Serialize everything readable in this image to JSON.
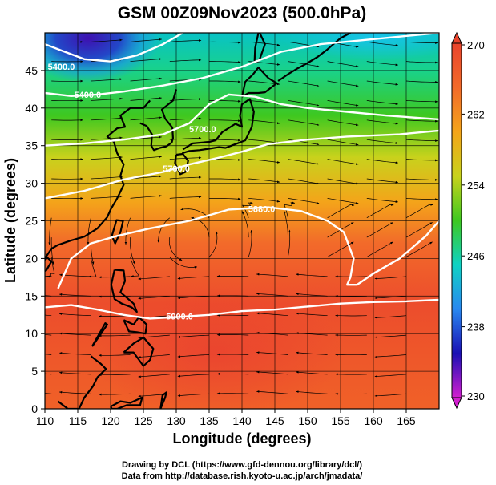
{
  "title": "GSM 00Z09Nov2023 (500.0hPa)",
  "xlabel": "Longitude (degrees)",
  "ylabel": "Latitude  (degrees)",
  "footer": [
    "Drawing by DCL (https://www.gfd-dennou.org/library/dcl/)",
    "Data from http://database.rish.kyoto-u.ac.jp/arch/jmadata/"
  ],
  "colors": {
    "colorbar": [
      "#d21ecf",
      "#1a10b4",
      "#2888f0",
      "#0fd2c4",
      "#3ec820",
      "#c8d21c",
      "#f4a41a",
      "#f26a2a",
      "#e9442c"
    ],
    "contour": "#ffffff",
    "coast": "#000000",
    "streamline": "#000000"
  },
  "chart_data": {
    "type": "heatmap",
    "field": "temperature (K) at 500 hPa with geopotential height contours and wind streamlines",
    "xlim": [
      110,
      170
    ],
    "ylim": [
      0,
      50
    ],
    "xticks": [
      "110",
      "115",
      "120",
      "125",
      "130",
      "135",
      "140",
      "145",
      "150",
      "155",
      "160",
      "165"
    ],
    "yticks": [
      "0",
      "5",
      "10",
      "15",
      "20",
      "25",
      "30",
      "35",
      "40",
      "45"
    ],
    "colorbar": {
      "min": 230,
      "max": 270,
      "ticks": [
        "230",
        "238",
        "246",
        "254",
        "262",
        "270"
      ]
    },
    "contours": [
      {
        "label": "5400.0",
        "lon": [
          110,
          113,
          116,
          120,
          124,
          128,
          131
        ],
        "lat": [
          48.5,
          47.5,
          46.5,
          46.2,
          47,
          48.5,
          50
        ]
      },
      {
        "label": "5400.0",
        "lon": [
          110,
          114,
          118,
          122,
          128,
          134,
          140,
          146,
          152,
          158,
          164,
          170
        ],
        "lat": [
          42,
          41.6,
          41.8,
          42.2,
          43,
          44,
          45.5,
          47.5,
          48.5,
          49,
          49.5,
          50
        ]
      },
      {
        "label": "5700.0",
        "lon": [
          110,
          116,
          122,
          128,
          132,
          135,
          138,
          142,
          146,
          150,
          156,
          162,
          170
        ],
        "lat": [
          35,
          35.3,
          35.8,
          36.5,
          38,
          40.5,
          41.8,
          41.5,
          40.5,
          40,
          39.5,
          39,
          38.5
        ]
      },
      {
        "label": "5700.0",
        "lon": [
          110,
          116,
          122,
          128,
          132,
          136,
          140,
          144,
          150,
          156,
          164,
          170
        ],
        "lat": [
          28,
          29,
          30.5,
          31.5,
          32.5,
          33.3,
          34.2,
          35.2,
          35.8,
          36.2,
          36.5,
          37
        ]
      },
      {
        "label": "5880.0",
        "lon": [
          112,
          114,
          117,
          121,
          126,
          132,
          138,
          144,
          149,
          153,
          155.5,
          157,
          156.5,
          156,
          157.5,
          160,
          164,
          168,
          170
        ],
        "lat": [
          16,
          20,
          22,
          23,
          24,
          25,
          26.5,
          26.8,
          26.3,
          25,
          23.5,
          20,
          17.5,
          16.5,
          16.5,
          18,
          20,
          23,
          25
        ]
      },
      {
        "label": "5900.0",
        "lon": [
          110,
          114,
          118,
          122,
          126,
          130,
          135,
          140,
          145,
          150,
          155,
          160,
          165,
          170
        ],
        "lat": [
          13.5,
          13.8,
          13.2,
          12.5,
          12,
          12.2,
          12.5,
          13,
          13.2,
          13.6,
          14,
          14.2,
          14.3,
          14.5
        ]
      }
    ],
    "contour_labels": [
      {
        "text": "5400.0",
        "lon": 112.5,
        "lat": 45.5
      },
      {
        "text": "5400.0",
        "lon": 116.5,
        "lat": 41.8
      },
      {
        "text": "5700.0",
        "lon": 134,
        "lat": 37.2
      },
      {
        "text": "5700.0",
        "lon": 130,
        "lat": 32.0
      },
      {
        "text": "5880.0",
        "lon": 143,
        "lat": 26.6
      },
      {
        "text": "5900.0",
        "lon": 130.5,
        "lat": 12.3
      }
    ],
    "coastlines": [
      {
        "name": "China",
        "lon": [
          110,
          111,
          112,
          114,
          116,
          118,
          119.5,
          120,
          121,
          122,
          121.5,
          122,
          121,
          120.5,
          119.5,
          121,
          122.2,
          121.5,
          123,
          125,
          126
        ],
        "lat": [
          20,
          21.3,
          21.8,
          22.4,
          22.9,
          24,
          25.5,
          26.5,
          28,
          29.8,
          31,
          32.5,
          34,
          35.5,
          36.2,
          37.3,
          37.5,
          39,
          40,
          40,
          41
        ]
      },
      {
        "name": "Korea",
        "lon": [
          124.5,
          125.5,
          126.3,
          126.2,
          126.6,
          127.5,
          128.5,
          129.3,
          129.5,
          129.4,
          128.3,
          127.8,
          129.5,
          130
        ],
        "lat": [
          38,
          37.6,
          36.5,
          35,
          34.4,
          34.7,
          34.9,
          35.4,
          36,
          37.4,
          38.6,
          39.8,
          41,
          42.5
        ]
      },
      {
        "name": "Honshu",
        "lon": [
          130.9,
          132,
          133.5,
          135,
          136.5,
          137.5,
          139,
          140.5,
          141.5,
          141.8,
          141.2,
          140,
          139.7,
          140,
          139,
          137,
          136,
          135,
          132.5,
          131
        ],
        "lat": [
          34,
          34.3,
          34.4,
          34.6,
          34.8,
          34.7,
          35.2,
          35.7,
          37.5,
          39.5,
          41.2,
          40.5,
          39,
          37.5,
          37.9,
          36.8,
          35.7,
          35.5,
          35.3,
          34.5
        ]
      },
      {
        "name": "Kyushu",
        "lon": [
          130,
          131,
          131.8,
          131.4,
          130.6,
          129.8,
          130
        ],
        "lat": [
          33.8,
          33.9,
          33,
          31.5,
          31.2,
          32.7,
          33.8
        ]
      },
      {
        "name": "Hokkaido",
        "lon": [
          140,
          141,
          142.5,
          143.5,
          145.3,
          144,
          142.5,
          141.7,
          140.5,
          140
        ],
        "lat": [
          41.5,
          42,
          42,
          42.1,
          43.3,
          44,
          45.4,
          44.5,
          43.5,
          41.5
        ]
      },
      {
        "name": "Sakhalin",
        "lon": [
          141.9,
          142.7,
          143.5,
          142.7,
          142.5,
          142,
          141.9
        ],
        "lat": [
          46,
          46.5,
          48.5,
          50,
          50,
          48,
          46
        ]
      },
      {
        "name": "Kurils",
        "lon": [
          145.5,
          147,
          148.5,
          150,
          151.5,
          153,
          155,
          156.5
        ],
        "lat": [
          43.6,
          44.5,
          45.3,
          46,
          46.8,
          47.8,
          49.3,
          50
        ]
      },
      {
        "name": "Taiwan",
        "lon": [
          120.2,
          120.9,
          121.9,
          121.5,
          120.7,
          120.2
        ],
        "lat": [
          23,
          25.1,
          25,
          23.5,
          22,
          23
        ]
      },
      {
        "name": "Hainan",
        "lon": [
          108.7,
          110.4,
          111,
          110.2,
          109.5,
          108.7
        ],
        "lat": [
          19,
          20.1,
          19.6,
          18.4,
          18.2,
          19
        ]
      },
      {
        "name": "Luzon",
        "lon": [
          120.6,
          122,
          122.2,
          121.5,
          123.5,
          124,
          123.2,
          121.7,
          120.6,
          120.1,
          120.6
        ],
        "lat": [
          18.5,
          18.4,
          17,
          15.5,
          14,
          12.9,
          13.5,
          14,
          14.6,
          16.5,
          18.5
        ]
      },
      {
        "name": "Visayas",
        "lon": [
          122,
          123.5,
          124.3,
          125.5,
          125.3,
          124,
          122.8,
          122
        ],
        "lat": [
          11.8,
          11.2,
          12.2,
          11.2,
          10,
          10.2,
          10.3,
          11.8
        ]
      },
      {
        "name": "Mindanao",
        "lon": [
          122,
          123.5,
          125,
          126.5,
          126,
          125,
          123.5,
          122
        ],
        "lat": [
          7.5,
          8.7,
          9.5,
          8,
          6.5,
          5.7,
          7.5,
          7.5
        ]
      },
      {
        "name": "Palawan",
        "lon": [
          117.2,
          119.5,
          119.2,
          117.2
        ],
        "lat": [
          8.3,
          11.2,
          11.4,
          8.3
        ]
      },
      {
        "name": "Borneo",
        "lon": [
          117,
          118.5,
          119.3,
          118,
          117.3,
          116,
          115.2,
          113.5,
          112
        ],
        "lat": [
          7,
          6,
          5.3,
          4.2,
          3,
          1.5,
          0,
          0,
          1
        ]
      },
      {
        "name": "Sulawesi",
        "lon": [
          120,
          121.5,
          123,
          124.8,
          124.5,
          122.5,
          121,
          120.2,
          120
        ],
        "lat": [
          0.3,
          1,
          0.8,
          1.5,
          0.5,
          0.5,
          0,
          0,
          0.3
        ]
      },
      {
        "name": "Halmahera",
        "lon": [
          127.6,
          128.3,
          128.5,
          127.9,
          127.6
        ],
        "lat": [
          0,
          1.5,
          2.2,
          1.8,
          0
        ]
      }
    ]
  }
}
